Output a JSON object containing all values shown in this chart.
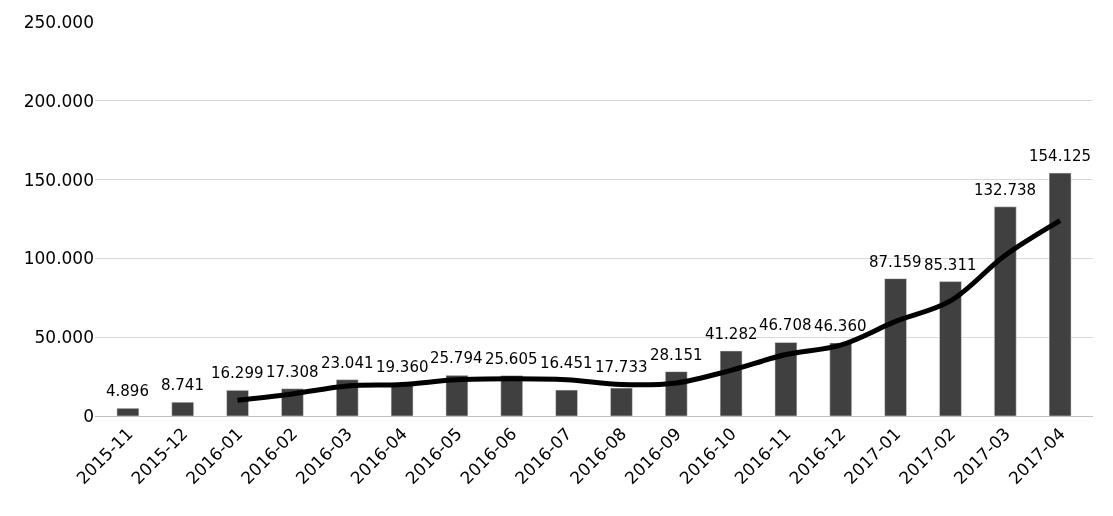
{
  "chart_data": {
    "type": "bar",
    "categories": [
      "2015-11",
      "2015-12",
      "2016-01",
      "2016-02",
      "2016-03",
      "2016-04",
      "2016-05",
      "2016-06",
      "2016-07",
      "2016-08",
      "2016-09",
      "2016-10",
      "2016-11",
      "2016-12",
      "2017-01",
      "2017-02",
      "2017-03",
      "2017-04"
    ],
    "series": [
      {
        "color": "#404040",
        "values": [
          4896,
          8741,
          16299,
          17308,
          23041,
          19360,
          25794,
          25605,
          16451,
          17733,
          28151,
          41282,
          46708,
          46360,
          87159,
          85311,
          132738,
          154125
        ],
        "value_labels": [
          "4.896",
          "8.741",
          "16.299",
          "17.308",
          "23.041",
          "19.360",
          "25.794",
          "25.605",
          "16.451",
          "17.733",
          "28.151",
          "41.282",
          "46.708",
          "46.360",
          "87.159",
          "85.311",
          "132.738",
          "154.125"
        ]
      },
      {
        "type": "line",
        "color": "#000000",
        "values": [
          null,
          null,
          10000,
          14000,
          19000,
          20000,
          23000,
          23600,
          23000,
          20000,
          21000,
          29000,
          39000,
          45000,
          60000,
          73000,
          102000,
          124000
        ]
      }
    ],
    "ylim": [
      0,
      250000
    ],
    "yticks": [
      {
        "value": 0,
        "label": "0"
      },
      {
        "value": 50000,
        "label": "50.000"
      },
      {
        "value": 100000,
        "label": "100.000"
      },
      {
        "value": 150000,
        "label": "150.000"
      },
      {
        "value": 200000,
        "label": "200.000"
      },
      {
        "value": 250000,
        "label": "250.000"
      }
    ],
    "grid": "y"
  }
}
